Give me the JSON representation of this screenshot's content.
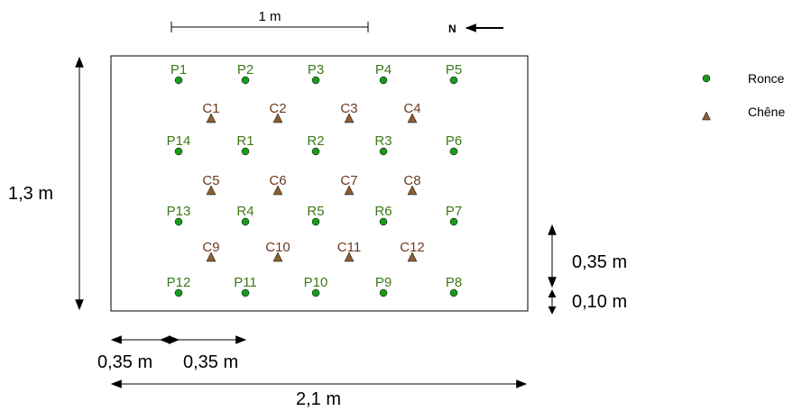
{
  "scale_bar": {
    "label": "1 m"
  },
  "north": {
    "label": "N"
  },
  "colors": {
    "ronce": "#1a9a1a",
    "ronce_label": "#3b7a17",
    "chene": "#8b5e34",
    "chene_label": "#6b3a1f"
  },
  "plants": [
    {
      "id": "P1",
      "type": "ronce"
    },
    {
      "id": "P2",
      "type": "ronce"
    },
    {
      "id": "P3",
      "type": "ronce"
    },
    {
      "id": "P4",
      "type": "ronce"
    },
    {
      "id": "P5",
      "type": "ronce"
    },
    {
      "id": "C1",
      "type": "chene"
    },
    {
      "id": "C2",
      "type": "chene"
    },
    {
      "id": "C3",
      "type": "chene"
    },
    {
      "id": "C4",
      "type": "chene"
    },
    {
      "id": "P14",
      "type": "ronce"
    },
    {
      "id": "R1",
      "type": "ronce"
    },
    {
      "id": "R2",
      "type": "ronce"
    },
    {
      "id": "R3",
      "type": "ronce"
    },
    {
      "id": "P6",
      "type": "ronce"
    },
    {
      "id": "C5",
      "type": "chene"
    },
    {
      "id": "C6",
      "type": "chene"
    },
    {
      "id": "C7",
      "type": "chene"
    },
    {
      "id": "C8",
      "type": "chene"
    },
    {
      "id": "P13",
      "type": "ronce"
    },
    {
      "id": "R4",
      "type": "ronce"
    },
    {
      "id": "R5",
      "type": "ronce"
    },
    {
      "id": "R6",
      "type": "ronce"
    },
    {
      "id": "P7",
      "type": "ronce"
    },
    {
      "id": "C9",
      "type": "chene"
    },
    {
      "id": "C10",
      "type": "chene"
    },
    {
      "id": "C11",
      "type": "chene"
    },
    {
      "id": "C12",
      "type": "chene"
    },
    {
      "id": "P12",
      "type": "ronce"
    },
    {
      "id": "P11",
      "type": "ronce"
    },
    {
      "id": "P10",
      "type": "ronce"
    },
    {
      "id": "P9",
      "type": "ronce"
    },
    {
      "id": "P8",
      "type": "ronce"
    }
  ],
  "dimensions": {
    "height": "1,3 m",
    "width": "2,1 m",
    "spacing_left": "0,35 m",
    "spacing_right": "0,35 m",
    "row_spacing": "0,35 m",
    "edge_spacing": "0,10 m"
  },
  "legend": {
    "ronce": "Ronce",
    "chene": "Chêne"
  }
}
